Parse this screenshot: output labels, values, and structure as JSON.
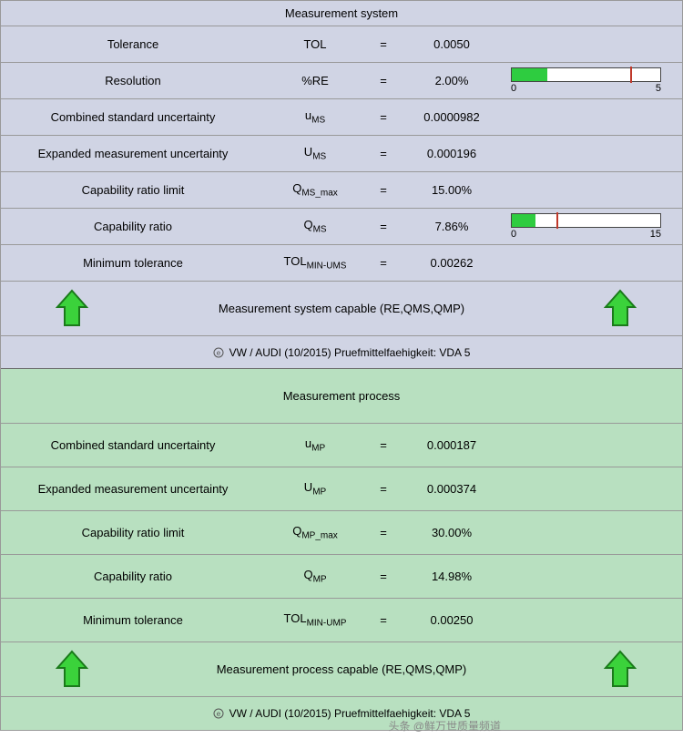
{
  "sys": {
    "title": "Measurement system",
    "rows": [
      {
        "label": "Tolerance",
        "symbol": "TOL",
        "eq": "=",
        "value": "0.0050"
      },
      {
        "label": "Resolution",
        "symbol": "%RE",
        "eq": "=",
        "value": "2.00%",
        "bar": {
          "fill_pct": 24,
          "mark_pct": 80,
          "lo": "0",
          "hi": "5",
          "fill_color": "#2ecc40",
          "mark_color": "#c0392b",
          "track_color": "#ffffff",
          "border_color": "#444"
        }
      },
      {
        "label": "Combined standard uncertainty",
        "symbol_html": "u<sub>MS</sub>",
        "eq": "=",
        "value": "0.0000982"
      },
      {
        "label": "Expanded measurement uncertainty",
        "symbol_html": "U<sub>MS</sub>",
        "eq": "=",
        "value": "0.000196"
      },
      {
        "label": "Capability ratio limit",
        "symbol_html": "Q<sub>MS_max</sub>",
        "eq": "=",
        "value": "15.00%"
      },
      {
        "label": "Capability ratio",
        "symbol_html": "Q<sub>MS</sub>",
        "eq": "=",
        "value": "7.86%",
        "bar": {
          "fill_pct": 16,
          "mark_pct": 30,
          "lo": "0",
          "hi": "15",
          "fill_color": "#2ecc40",
          "mark_color": "#c0392b",
          "track_color": "#ffffff",
          "border_color": "#444"
        }
      },
      {
        "label": "Minimum tolerance",
        "symbol_html": "TOL<sub>MIN-UMS</sub>",
        "eq": "=",
        "value": "0.00262"
      }
    ],
    "capable_text": "Measurement system capable (RE,QMS,QMP)",
    "arrow_fill": "#3bd23b",
    "arrow_stroke": "#1a7a1a",
    "footer": "VW / AUDI (10/2015) Pruefmittelfaehigkeit: VDA 5",
    "bg": "#d0d4e4"
  },
  "proc": {
    "title": "Measurement process",
    "rows": [
      {
        "label": "Combined standard uncertainty",
        "symbol_html": "u<sub>MP</sub>",
        "eq": "=",
        "value": "0.000187"
      },
      {
        "label": "Expanded measurement uncertainty",
        "symbol_html": "U<sub>MP</sub>",
        "eq": "=",
        "value": "0.000374"
      },
      {
        "label": "Capability ratio limit",
        "symbol_html": "Q<sub>MP_max</sub>",
        "eq": "=",
        "value": "30.00%"
      },
      {
        "label": "Capability ratio",
        "symbol_html": "Q<sub>MP</sub>",
        "eq": "=",
        "value": "14.98%"
      },
      {
        "label": "Minimum tolerance",
        "symbol_html": "TOL<sub>MIN-UMP</sub>",
        "eq": "=",
        "value": "0.00250"
      }
    ],
    "capable_text": "Measurement process capable (RE,QMS,QMP)",
    "arrow_fill": "#3bd23b",
    "arrow_stroke": "#1a7a1a",
    "footer": "VW / AUDI (10/2015) Pruefmittelfaehigkeit: VDA 5",
    "bg": "#b8e0c0"
  },
  "watermark": "头条 @鲜万世质量频道",
  "colors": {
    "border": "#999999",
    "text": "#000000"
  }
}
